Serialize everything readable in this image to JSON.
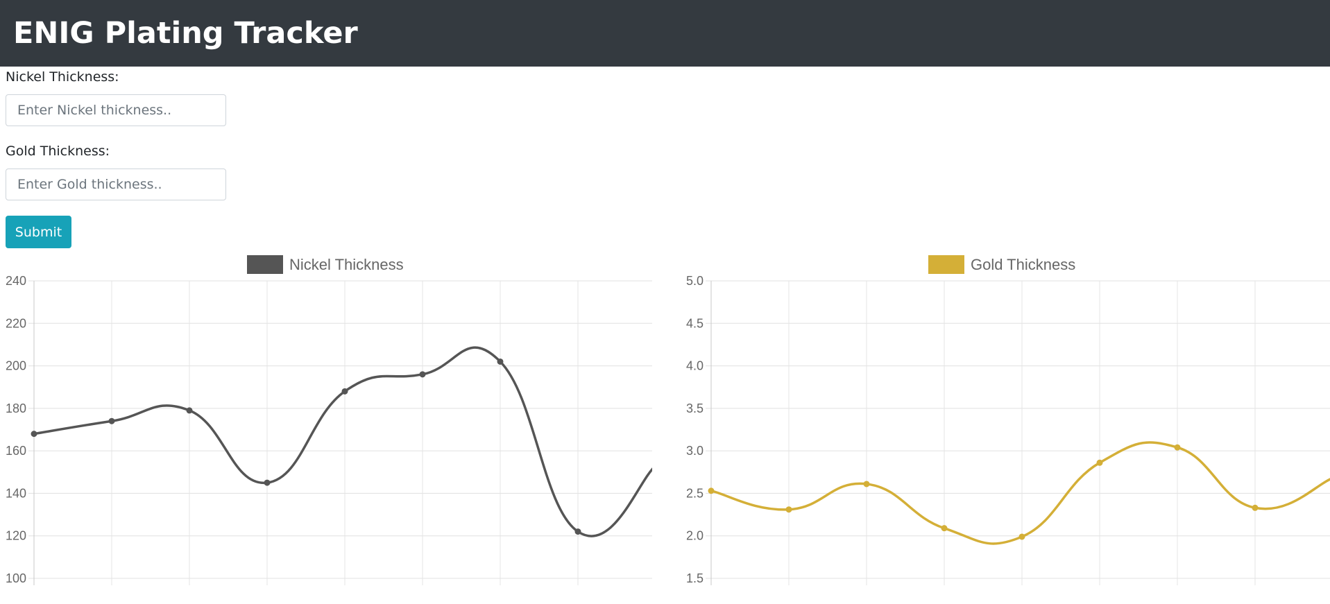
{
  "header": {
    "title": "ENIG Plating Tracker"
  },
  "form": {
    "nickel_label": "Nickel Thickness:",
    "nickel_placeholder": "Enter Nickel thickness..",
    "nickel_value": "",
    "gold_label": "Gold Thickness:",
    "gold_placeholder": "Enter Gold thickness..",
    "gold_value": "",
    "submit_label": "Submit"
  },
  "colors": {
    "navbar": "#343a40",
    "submit": "#17a2b8",
    "nickel": "#555555",
    "gold": "#d4af37"
  },
  "chart_data": [
    {
      "type": "line",
      "legend": "Nickel Thickness",
      "color": "#555555",
      "series": [
        {
          "name": "Nickel Thickness",
          "values": [
            168,
            174,
            179,
            145,
            188,
            196,
            202,
            122,
            153
          ]
        }
      ],
      "ylim": [
        100,
        240
      ],
      "yticks": [
        240,
        220,
        200,
        180,
        160,
        140,
        120,
        100
      ],
      "grid": true,
      "legend_position": "top"
    },
    {
      "type": "line",
      "legend": "Gold Thickness",
      "color": "#d4af37",
      "series": [
        {
          "name": "Gold Thickness",
          "values": [
            2.53,
            2.31,
            2.61,
            2.09,
            1.99,
            2.86,
            3.04,
            2.33,
            2.68
          ]
        }
      ],
      "ylim": [
        1.5,
        5.0
      ],
      "yticks": [
        "5.0",
        "4.5",
        "4.0",
        "3.5",
        "3.0",
        "2.5",
        "2.0",
        "1.5"
      ],
      "grid": true,
      "legend_position": "top"
    }
  ]
}
